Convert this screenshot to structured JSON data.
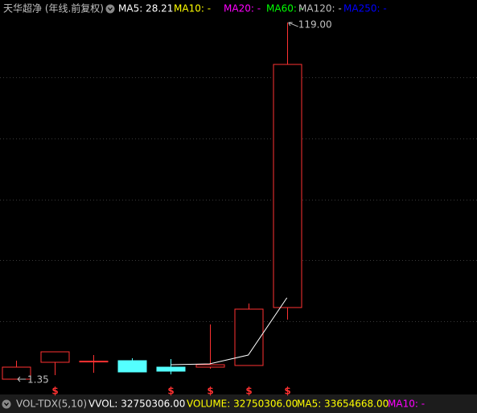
{
  "chart_data": {
    "type": "candlestick",
    "title": "天华超净 (年线.前复权)",
    "header_legend": [
      {
        "label": "MA5: 28.21",
        "color": "#ffffff"
      },
      {
        "label": "MA10: -",
        "color": "#ffff00"
      },
      {
        "label": "MA20: -",
        "color": "#ff00ff"
      },
      {
        "label": "MA60: -",
        "color": "#00ff00"
      },
      {
        "label": "MA120: -",
        "color": "#c0c0c0"
      },
      {
        "label": "MA250: -",
        "color": "#0000ff"
      }
    ],
    "candles": [
      {
        "open": 1.35,
        "high": 7.46,
        "low": 1.35,
        "close": 5.33
      },
      {
        "open": 6.93,
        "high": 10.38,
        "low": 2.68,
        "close": 10.38
      },
      {
        "open": 7.2,
        "high": 9.32,
        "low": 3.47,
        "close": 7.3
      },
      {
        "open": 7.46,
        "high": 8.26,
        "low": 3.74,
        "close": 3.74
      },
      {
        "open": 5.33,
        "high": 7.99,
        "low": 2.94,
        "close": 4.0
      },
      {
        "open": 5.33,
        "high": 19.41,
        "low": 4.8,
        "close": 6.13
      },
      {
        "open": 5.87,
        "high": 26.32,
        "low": 5.87,
        "close": 24.46
      },
      {
        "open": 24.99,
        "high": 119.0,
        "low": 21.0,
        "close": 105.2
      }
    ],
    "up_color": "#ff3232",
    "down_color": "#54ffff",
    "ma5": {
      "name": "MA5",
      "color": "#ffffff",
      "values": [
        null,
        null,
        null,
        null,
        6.13,
        6.4,
        9.32,
        28.21
      ]
    },
    "signals": [
      null,
      "$",
      null,
      null,
      "$",
      "$",
      "$",
      "$"
    ],
    "signal_color": "#ff3232",
    "annotations": [
      {
        "label": "119.00",
        "value": 119.0
      },
      {
        "label": "1.35",
        "value": 1.35
      }
    ],
    "ylim": [
      -1.04,
      121.14
    ],
    "yticks": [
      20.47,
      40.66,
      60.58,
      80.77,
      100.95
    ],
    "grid": true,
    "footer": [
      {
        "label": "VOL-TDX(5,10)",
        "color": "#c0c0c0"
      },
      {
        "label": "VVOL: 32750306.00",
        "color": "#ffffff"
      },
      {
        "label": "VOLUME: 32750306.00",
        "color": "#ffff00"
      },
      {
        "label": "MA5: 33654668.00",
        "color": "#ffff00"
      },
      {
        "label": "MA10: -",
        "color": "#ff00ff"
      }
    ]
  }
}
